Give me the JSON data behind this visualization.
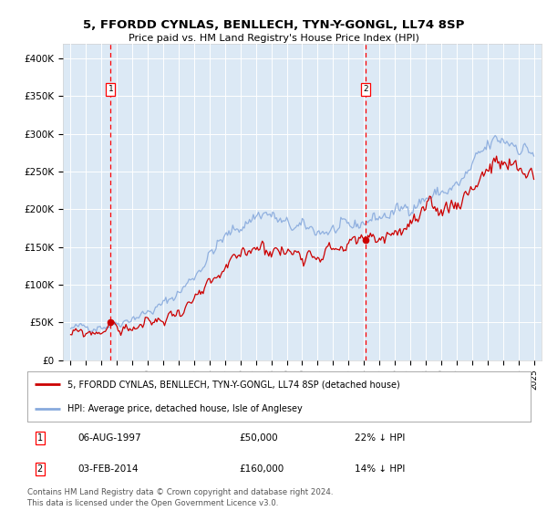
{
  "title": "5, FFORDD CYNLAS, BENLLECH, TYN-Y-GONGL, LL74 8SP",
  "subtitle": "Price paid vs. HM Land Registry's House Price Index (HPI)",
  "legend_line1": "5, FFORDD CYNLAS, BENLLECH, TYN-Y-GONGL, LL74 8SP (detached house)",
  "legend_line2": "HPI: Average price, detached house, Isle of Anglesey",
  "marker1_date": "06-AUG-1997",
  "marker1_price": 50000,
  "marker1_label": "22% ↓ HPI",
  "marker2_date": "03-FEB-2014",
  "marker2_price": 160000,
  "marker2_label": "14% ↓ HPI",
  "footer": "Contains HM Land Registry data © Crown copyright and database right 2024.\nThis data is licensed under the Open Government Licence v3.0.",
  "property_color": "#cc0000",
  "hpi_color": "#88aadd",
  "background_color": "#dce9f5",
  "ylim": [
    0,
    420000
  ],
  "yticks": [
    0,
    50000,
    100000,
    150000,
    200000,
    250000,
    300000,
    350000,
    400000
  ],
  "ytick_labels": [
    "£0",
    "£50K",
    "£100K",
    "£150K",
    "£200K",
    "£250K",
    "£300K",
    "£350K",
    "£400K"
  ],
  "marker1_x": 1997.59,
  "marker2_x": 2014.09,
  "xmin": 1994.5,
  "xmax": 2025.5,
  "hpi_key_years": [
    1995.0,
    1995.5,
    1996.0,
    1996.5,
    1997.0,
    1997.5,
    1998.0,
    1998.5,
    1999.0,
    1999.5,
    2000.0,
    2000.5,
    2001.0,
    2001.5,
    2002.0,
    2002.5,
    2003.0,
    2003.5,
    2004.0,
    2004.5,
    2005.0,
    2005.5,
    2006.0,
    2006.5,
    2007.0,
    2007.5,
    2008.0,
    2008.5,
    2009.0,
    2009.5,
    2010.0,
    2010.5,
    2011.0,
    2011.5,
    2012.0,
    2012.5,
    2013.0,
    2013.5,
    2014.0,
    2014.5,
    2015.0,
    2015.5,
    2016.0,
    2016.5,
    2017.0,
    2017.5,
    2018.0,
    2018.5,
    2019.0,
    2019.5,
    2020.0,
    2020.5,
    2021.0,
    2021.5,
    2022.0,
    2022.5,
    2023.0,
    2023.5,
    2024.0,
    2024.5,
    2025.0
  ],
  "hpi_key_values": [
    42000,
    43000,
    44000,
    45500,
    46000,
    47000,
    50000,
    53000,
    57000,
    60000,
    63000,
    68000,
    74000,
    82000,
    90000,
    100000,
    112000,
    125000,
    140000,
    152000,
    162000,
    170000,
    178000,
    184000,
    192000,
    196000,
    192000,
    184000,
    178000,
    176000,
    175000,
    174000,
    172000,
    171000,
    172000,
    173000,
    175000,
    178000,
    184000,
    188000,
    190000,
    192000,
    196000,
    200000,
    206000,
    210000,
    214000,
    218000,
    222000,
    226000,
    230000,
    240000,
    255000,
    270000,
    282000,
    290000,
    292000,
    290000,
    286000,
    280000,
    275000
  ],
  "prop_key_years": [
    1995.0,
    1996.0,
    1997.0,
    1997.59,
    1998.0,
    1999.0,
    2000.0,
    2001.0,
    2002.0,
    2003.0,
    2004.0,
    2005.0,
    2006.0,
    2007.0,
    2008.0,
    2009.0,
    2010.0,
    2011.0,
    2012.0,
    2013.0,
    2014.09,
    2015.0,
    2016.0,
    2017.0,
    2018.0,
    2019.0,
    2020.0,
    2021.0,
    2022.0,
    2023.0,
    2024.0,
    2025.0
  ],
  "prop_key_values": [
    34000,
    36000,
    38000,
    50000,
    40000,
    43000,
    48000,
    54000,
    65000,
    78000,
    95000,
    118000,
    138000,
    155000,
    148000,
    142000,
    145000,
    143000,
    148000,
    152000,
    160000,
    163000,
    170000,
    178000,
    190000,
    200000,
    210000,
    230000,
    255000,
    258000,
    248000,
    250000
  ]
}
